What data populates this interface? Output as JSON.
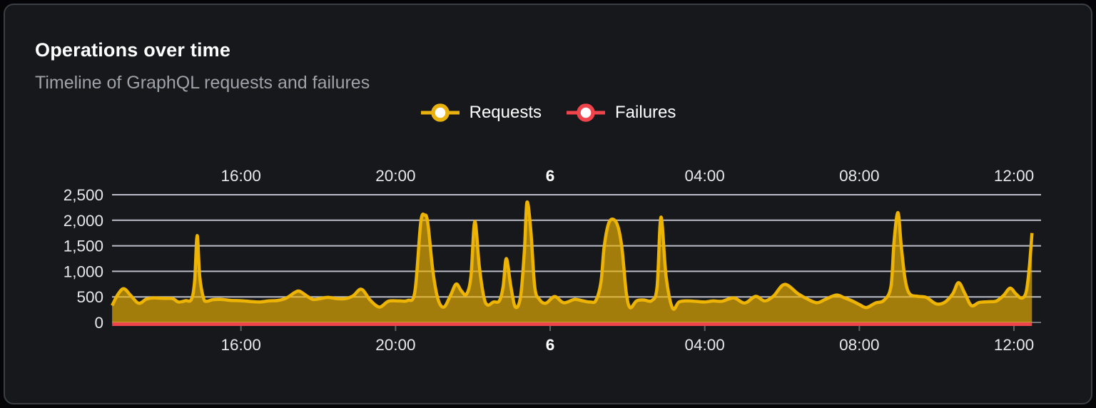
{
  "panel": {
    "title": "Operations over time",
    "subtitle": "Timeline of GraphQL requests and failures"
  },
  "legend": {
    "items": [
      {
        "label": "Requests",
        "color": "#e9b10e"
      },
      {
        "label": "Failures",
        "color": "#f0444c"
      }
    ]
  },
  "chart_data": {
    "type": "area",
    "title": "Operations over time",
    "grid": true,
    "legend_position": "top-center",
    "background_color": "#17181c",
    "gridline_color": "#d8dce6",
    "axis_text_color": "#e6e8ec",
    "y_axis": {
      "min": 0,
      "max": 2500,
      "tick_values": [
        0,
        500,
        1000,
        1500,
        2000,
        2500
      ],
      "tick_labels": [
        "0",
        "500",
        "1,000",
        "1,500",
        "2,000",
        "2,500"
      ]
    },
    "x_axis": {
      "start_time": "12:40",
      "end_time": "12:28",
      "day_boundary_label": "6",
      "ticks": [
        {
          "label": "16:00",
          "minutes": 960,
          "bold": false
        },
        {
          "label": "20:00",
          "minutes": 1200,
          "bold": false
        },
        {
          "label": "6",
          "minutes": 1440,
          "bold": true
        },
        {
          "label": "04:00",
          "minutes": 1680,
          "bold": false
        },
        {
          "label": "08:00",
          "minutes": 1920,
          "bold": false
        },
        {
          "label": "12:00",
          "minutes": 2160,
          "bold": false
        }
      ]
    },
    "series": [
      {
        "name": "Requests",
        "color": "#eeb404",
        "fill_opacity": 0.65,
        "line_width": 4.5,
        "points": [
          [
            "12:40",
            330
          ],
          [
            "12:49",
            550
          ],
          [
            "12:58",
            660
          ],
          [
            "13:08",
            540
          ],
          [
            "13:21",
            375
          ],
          [
            "13:33",
            455
          ],
          [
            "13:44",
            480
          ],
          [
            "14:01",
            470
          ],
          [
            "14:14",
            465
          ],
          [
            "14:23",
            400
          ],
          [
            "14:34",
            425
          ],
          [
            "14:43",
            450
          ],
          [
            "14:48",
            800
          ],
          [
            "14:52",
            1700
          ],
          [
            "14:56",
            900
          ],
          [
            "15:02",
            470
          ],
          [
            "15:07",
            415
          ],
          [
            "15:16",
            445
          ],
          [
            "15:29",
            450
          ],
          [
            "15:45",
            430
          ],
          [
            "16:00",
            425
          ],
          [
            "16:16",
            408
          ],
          [
            "16:29",
            400
          ],
          [
            "16:43",
            420
          ],
          [
            "16:58",
            432
          ],
          [
            "17:11",
            480
          ],
          [
            "17:24",
            590
          ],
          [
            "17:31",
            610
          ],
          [
            "17:42",
            520
          ],
          [
            "17:52",
            450
          ],
          [
            "18:04",
            468
          ],
          [
            "18:15",
            490
          ],
          [
            "18:29",
            465
          ],
          [
            "18:42",
            465
          ],
          [
            "18:54",
            520
          ],
          [
            "19:07",
            650
          ],
          [
            "19:21",
            430
          ],
          [
            "19:35",
            300
          ],
          [
            "19:49",
            415
          ],
          [
            "20:06",
            420
          ],
          [
            "20:19",
            430
          ],
          [
            "20:30",
            600
          ],
          [
            "20:39",
            1950
          ],
          [
            "20:45",
            2100
          ],
          [
            "20:50",
            1950
          ],
          [
            "20:58",
            1000
          ],
          [
            "21:06",
            450
          ],
          [
            "21:15",
            300
          ],
          [
            "21:25",
            520
          ],
          [
            "21:34",
            750
          ],
          [
            "21:42",
            620
          ],
          [
            "21:50",
            550
          ],
          [
            "21:57",
            900
          ],
          [
            "22:03",
            1975
          ],
          [
            "22:10",
            1100
          ],
          [
            "22:17",
            500
          ],
          [
            "22:23",
            340
          ],
          [
            "22:32",
            400
          ],
          [
            "22:41",
            420
          ],
          [
            "22:47",
            700
          ],
          [
            "22:52",
            1250
          ],
          [
            "22:59",
            700
          ],
          [
            "23:06",
            300
          ],
          [
            "23:14",
            500
          ],
          [
            "23:20",
            1400
          ],
          [
            "23:24",
            2350
          ],
          [
            "23:30",
            1800
          ],
          [
            "23:36",
            700
          ],
          [
            "23:43",
            455
          ],
          [
            "23:53",
            375
          ],
          [
            "00:07",
            505
          ],
          [
            "00:21",
            385
          ],
          [
            "00:38",
            450
          ],
          [
            "00:51",
            420
          ],
          [
            "01:02",
            400
          ],
          [
            "01:11",
            430
          ],
          [
            "01:19",
            800
          ],
          [
            "01:24",
            1500
          ],
          [
            "01:32",
            1975
          ],
          [
            "01:43",
            1950
          ],
          [
            "01:51",
            1500
          ],
          [
            "01:58",
            600
          ],
          [
            "02:04",
            290
          ],
          [
            "02:14",
            420
          ],
          [
            "02:25",
            440
          ],
          [
            "02:38",
            430
          ],
          [
            "02:46",
            700
          ],
          [
            "02:52",
            2060
          ],
          [
            "03:00",
            900
          ],
          [
            "03:10",
            280
          ],
          [
            "03:20",
            400
          ],
          [
            "03:33",
            420
          ],
          [
            "03:48",
            410
          ],
          [
            "04:00",
            400
          ],
          [
            "04:13",
            420
          ],
          [
            "04:27",
            415
          ],
          [
            "04:45",
            480
          ],
          [
            "05:02",
            380
          ],
          [
            "05:19",
            510
          ],
          [
            "05:33",
            420
          ],
          [
            "05:47",
            520
          ],
          [
            "06:04",
            745
          ],
          [
            "06:25",
            560
          ],
          [
            "06:39",
            460
          ],
          [
            "06:54",
            385
          ],
          [
            "07:07",
            450
          ],
          [
            "07:24",
            535
          ],
          [
            "07:37",
            480
          ],
          [
            "07:49",
            420
          ],
          [
            "08:00",
            350
          ],
          [
            "08:11",
            290
          ],
          [
            "08:25",
            380
          ],
          [
            "08:38",
            430
          ],
          [
            "08:49",
            700
          ],
          [
            "08:54",
            1600
          ],
          [
            "09:00",
            2150
          ],
          [
            "09:05",
            1500
          ],
          [
            "09:11",
            850
          ],
          [
            "09:18",
            560
          ],
          [
            "09:31",
            510
          ],
          [
            "09:44",
            490
          ],
          [
            "09:59",
            365
          ],
          [
            "10:12",
            390
          ],
          [
            "10:25",
            560
          ],
          [
            "10:34",
            780
          ],
          [
            "10:44",
            560
          ],
          [
            "10:54",
            330
          ],
          [
            "11:06",
            390
          ],
          [
            "11:21",
            405
          ],
          [
            "11:33",
            420
          ],
          [
            "11:44",
            530
          ],
          [
            "11:54",
            670
          ],
          [
            "12:03",
            560
          ],
          [
            "12:12",
            475
          ],
          [
            "12:19",
            600
          ],
          [
            "12:24",
            1100
          ],
          [
            "12:28",
            1750
          ]
        ]
      },
      {
        "name": "Failures",
        "color": "#f0444c",
        "line_width": 5,
        "points": [
          [
            "12:40",
            0
          ],
          [
            "12:28",
            0
          ]
        ]
      }
    ]
  }
}
